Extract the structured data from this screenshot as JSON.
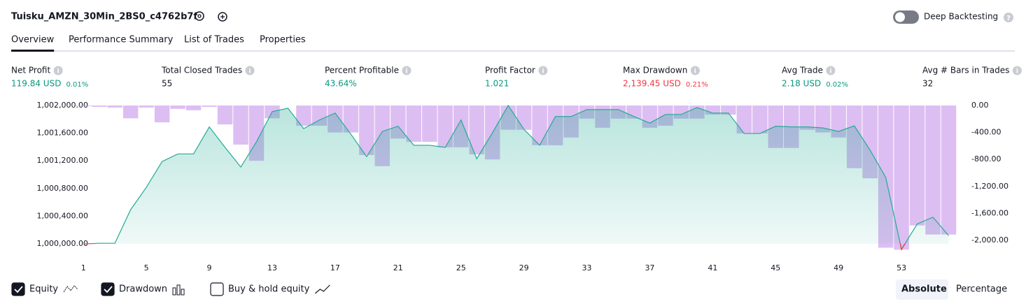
{
  "header": {
    "title": "Tuisku_AMZN_30Min_2BS0_c4762b7f",
    "deep_backtesting": "Deep Backtesting"
  },
  "tabs": [
    {
      "label": "Overview",
      "active": true
    },
    {
      "label": "Performance Summary",
      "active": false
    },
    {
      "label": "List of Trades",
      "active": false
    },
    {
      "label": "Properties",
      "active": false
    }
  ],
  "metrics": [
    {
      "label": "Net Profit",
      "value": "119.84 USD",
      "percent": "0.01%",
      "color": "#089981"
    },
    {
      "label": "Total Closed Trades",
      "value": "55",
      "color": "#131722"
    },
    {
      "label": "Percent Profitable",
      "value": "43.64%",
      "color": "#089981"
    },
    {
      "label": "Profit Factor",
      "value": "1.021",
      "color": "#089981"
    },
    {
      "label": "Max Drawdown",
      "value": "2,139.45 USD",
      "percent": "0.21%",
      "color": "#f23645"
    },
    {
      "label": "Avg Trade",
      "value": "2.18 USD",
      "percent": "0.02%",
      "color": "#089981"
    },
    {
      "label": "Avg # Bars in Trades",
      "value": "32",
      "color": "#131722"
    }
  ],
  "chart_data": {
    "type": "area",
    "x": [
      1,
      2,
      3,
      4,
      5,
      6,
      7,
      8,
      9,
      10,
      11,
      12,
      13,
      14,
      15,
      16,
      17,
      18,
      19,
      20,
      21,
      22,
      23,
      24,
      25,
      26,
      27,
      28,
      29,
      30,
      31,
      32,
      33,
      34,
      35,
      36,
      37,
      38,
      39,
      40,
      41,
      42,
      43,
      44,
      45,
      46,
      47,
      48,
      49,
      50,
      51,
      52,
      53,
      54,
      55,
      56
    ],
    "xlim": [
      0.5,
      57
    ],
    "xticks": [
      1,
      5,
      9,
      13,
      17,
      21,
      25,
      29,
      33,
      37,
      41,
      45,
      49,
      53
    ],
    "ylim": [
      999800,
      1002100
    ],
    "yticks": [
      {
        "value": 1000000,
        "label": "1,000,000.00"
      },
      {
        "value": 1000400,
        "label": "1,000,400.00"
      },
      {
        "value": 1000800,
        "label": "1,000,800.00"
      },
      {
        "value": 1001200,
        "label": "1,001,200.00"
      },
      {
        "value": 1001600,
        "label": "1,001,600.00"
      },
      {
        "value": 1002000,
        "label": "1,002,000.00"
      }
    ],
    "y2lim": [
      -2260,
      104
    ],
    "y2ticks": [
      {
        "value": 0,
        "label": "0.00"
      },
      {
        "value": -400,
        "label": "-400.00"
      },
      {
        "value": -800,
        "label": "-800.00"
      },
      {
        "value": -1200,
        "label": "-1,200.00"
      },
      {
        "value": -1600,
        "label": "-1,600.00"
      },
      {
        "value": -2000,
        "label": "-2,000.00"
      }
    ],
    "series": [
      {
        "name": "Equity",
        "color": "#22ab94",
        "negative_color": "#f23645",
        "checked": true,
        "axis": "y",
        "values": [
          1000000,
          1000010,
          1000010,
          1000495,
          1000818,
          1001190,
          1001300,
          1001300,
          1001690,
          1001395,
          1001110,
          1001475,
          1001910,
          1001960,
          1001665,
          1001790,
          1001890,
          1001585,
          1001260,
          1001625,
          1001700,
          1001425,
          1001425,
          1001395,
          1001790,
          1001230,
          1001605,
          1002000,
          1001655,
          1001425,
          1001840,
          1001840,
          1001940,
          1001940,
          1001940,
          1001840,
          1001745,
          1001870,
          1001870,
          1001970,
          1001890,
          1001890,
          1001595,
          1001595,
          1001700,
          1001690,
          1001690,
          1001675,
          1001625,
          1001705,
          1001355,
          1000960,
          999920,
          1000290,
          1000385,
          1000120
        ]
      },
      {
        "name": "Drawdown",
        "color": "#c792ea",
        "checked": true,
        "axis": "y2",
        "values": [
          -10,
          -20,
          -30,
          -190,
          -30,
          -250,
          -50,
          -70,
          -20,
          -280,
          -580,
          -820,
          -190,
          0,
          -300,
          -300,
          -400,
          -400,
          -735,
          -900,
          -490,
          -540,
          -540,
          -620,
          -620,
          -725,
          -800,
          -360,
          -360,
          -590,
          -590,
          -475,
          -195,
          -330,
          -195,
          -195,
          -330,
          -300,
          -195,
          -195,
          -135,
          -135,
          -415,
          -415,
          -630,
          -630,
          -360,
          -400,
          -475,
          -930,
          -1080,
          -2110,
          -2140,
          -1780,
          -1915,
          -1915
        ]
      }
    ],
    "buy_hold": {
      "name": "Buy & hold equity",
      "checked": false
    },
    "scale_modes": [
      {
        "label": "Absolute",
        "active": true
      },
      {
        "label": "Percentage",
        "active": false
      }
    ]
  }
}
